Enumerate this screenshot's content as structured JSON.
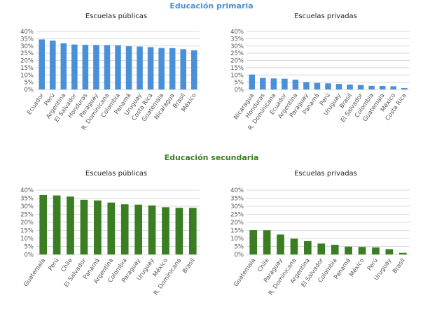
{
  "sections": [
    {
      "title": "Educación primaria",
      "color": "#4a90d9"
    },
    {
      "title": "Educación secundaria",
      "color": "#3a7d23"
    }
  ],
  "chart_data": [
    {
      "type": "bar",
      "section": 0,
      "title": "Escuelas públicas",
      "color": "#4a90d9",
      "ylim": [
        0,
        40
      ],
      "yticks": [
        "0%",
        "5%",
        "10%",
        "15%",
        "20%",
        "25%",
        "30%",
        "35%",
        "40%"
      ],
      "grid": true,
      "categories": [
        "Ecuador",
        "Perú",
        "Argentina",
        "El Salvador",
        "Honduras",
        "Paraguay",
        "R. Dominicana",
        "Colombia",
        "Panamá",
        "Uruguay",
        "Costa Rica",
        "Guatemala",
        "Nicaragua",
        "Brasil",
        "México"
      ],
      "values": [
        34.5,
        33.7,
        31.8,
        31.0,
        30.8,
        30.7,
        30.6,
        30.5,
        29.8,
        29.6,
        29.2,
        28.6,
        28.5,
        27.8,
        27.0
      ]
    },
    {
      "type": "bar",
      "section": 0,
      "title": "Escuelas privadas",
      "color": "#4a90d9",
      "ylim": [
        0,
        40
      ],
      "yticks": [
        "0%",
        "5%",
        "10%",
        "15%",
        "20%",
        "25%",
        "30%",
        "35%",
        "40%"
      ],
      "grid": true,
      "categories": [
        "Nicaragua",
        "Honduras",
        "R. Dominicana",
        "Ecuador",
        "Argentina",
        "Paraguay",
        "Panamá",
        "Perú",
        "Uruguay",
        "Brasil",
        "El Salvador",
        "Colombia",
        "Guatemala",
        "México",
        "Costa Rica"
      ],
      "values": [
        10.3,
        8.0,
        7.6,
        7.4,
        6.8,
        5.1,
        4.5,
        4.2,
        3.8,
        3.4,
        3.1,
        2.5,
        2.4,
        2.2,
        1.0
      ]
    },
    {
      "type": "bar",
      "section": 1,
      "title": "Escuelas públicas",
      "color": "#3a7d23",
      "ylim": [
        0,
        40
      ],
      "yticks": [
        "0%",
        "5%",
        "10%",
        "15%",
        "20%",
        "25%",
        "30%",
        "35%",
        "40%"
      ],
      "grid": true,
      "categories": [
        "Guatemala",
        "Perú",
        "Chile",
        "El Salvador",
        "Panamá",
        "Argentina",
        "Colombia",
        "Paraguay",
        "Uruguay",
        "México",
        "R. Dominicana",
        "Brasil"
      ],
      "values": [
        37.0,
        36.7,
        36.0,
        34.0,
        33.6,
        32.3,
        31.2,
        31.0,
        30.5,
        29.4,
        29.0,
        29.0
      ]
    },
    {
      "type": "bar",
      "section": 1,
      "title": "Escuelas privadas",
      "color": "#3a7d23",
      "ylim": [
        0,
        40
      ],
      "yticks": [
        "0%",
        "5%",
        "10%",
        "15%",
        "20%",
        "25%",
        "30%",
        "35%",
        "40%"
      ],
      "grid": true,
      "categories": [
        "Guatemala",
        "Chile",
        "Paraguay",
        "R. Dominicana",
        "Argentina",
        "El Salvador",
        "Colombia",
        "Panamá",
        "México",
        "Perú",
        "Uruguay",
        "Brasil"
      ],
      "values": [
        15.2,
        15.1,
        12.4,
        9.8,
        8.3,
        6.8,
        6.0,
        4.9,
        4.7,
        4.4,
        3.3,
        1.0
      ]
    }
  ]
}
